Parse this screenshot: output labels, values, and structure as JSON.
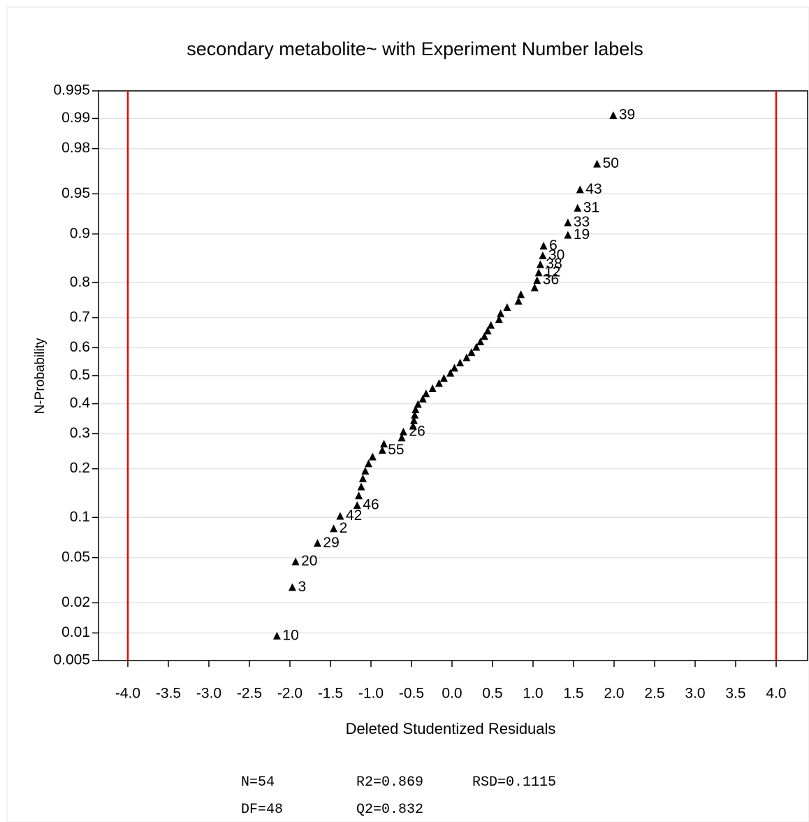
{
  "chart_data": {
    "type": "scatter",
    "title": "secondary metabolite~ with Experiment Number labels",
    "x_label": "Deleted Studentized Residuals",
    "y_label": "N-Probability",
    "y_scale": "probability",
    "marker_color": "#000000",
    "grid": true,
    "xlim": [
      -4.362,
      4.388
    ],
    "ylim": [
      0.005,
      0.995
    ],
    "xticks": [
      {
        "value": -4,
        "label": "-4.0"
      },
      {
        "value": -3.5,
        "label": "-3.5"
      },
      {
        "value": -3,
        "label": "-3.0"
      },
      {
        "value": -2.5,
        "label": "-2.5"
      },
      {
        "value": -2,
        "label": "-2.0"
      },
      {
        "value": -1.5,
        "label": "-1.5"
      },
      {
        "value": -1,
        "label": "-1.0"
      },
      {
        "value": -0.5,
        "label": "-0.5"
      },
      {
        "value": 0,
        "label": "0.0"
      },
      {
        "value": 0.5,
        "label": "0.5"
      },
      {
        "value": 1,
        "label": "1.0"
      },
      {
        "value": 1.5,
        "label": "1.5"
      },
      {
        "value": 2,
        "label": "2.0"
      },
      {
        "value": 2.5,
        "label": "2.5"
      },
      {
        "value": 3,
        "label": "3.0"
      },
      {
        "value": 3.5,
        "label": "3.5"
      },
      {
        "value": 4,
        "label": "4.0"
      }
    ],
    "yticks": [
      0.005,
      0.01,
      0.02,
      0.05,
      0.1,
      0.2,
      0.3,
      0.4,
      0.5,
      0.6,
      0.7,
      0.8,
      0.9,
      0.95,
      0.98,
      0.99,
      0.995
    ],
    "reference_lines": {
      "values": [
        -4,
        4
      ],
      "color": "#ff0000"
    },
    "x": [
      -2.16,
      -1.97,
      -1.93,
      -1.66,
      -1.46,
      -1.38,
      -1.17,
      -1.15,
      -1.12,
      -1.1,
      -1.07,
      -1.03,
      -0.98,
      -0.86,
      -0.84,
      -0.62,
      -0.6,
      -0.48,
      -0.47,
      -0.46,
      -0.45,
      -0.42,
      -0.36,
      -0.32,
      -0.24,
      -0.16,
      -0.1,
      -0.02,
      0.03,
      0.1,
      0.18,
      0.24,
      0.3,
      0.35,
      0.4,
      0.44,
      0.48,
      0.58,
      0.6,
      0.68,
      0.82,
      0.85,
      1.02,
      1.05,
      1.07,
      1.09,
      1.12,
      1.13,
      1.43,
      1.43,
      1.55,
      1.58,
      1.79,
      1.99
    ],
    "values": [
      0.0093,
      0.0278,
      0.0463,
      0.0648,
      0.0833,
      0.1019,
      0.1204,
      0.1389,
      0.1574,
      0.1759,
      0.1944,
      0.213,
      0.2315,
      0.25,
      0.2685,
      0.287,
      0.3056,
      0.3241,
      0.3426,
      0.3611,
      0.3796,
      0.3981,
      0.4167,
      0.4352,
      0.4537,
      0.4722,
      0.4907,
      0.5093,
      0.5278,
      0.5463,
      0.5648,
      0.5833,
      0.6019,
      0.6204,
      0.6389,
      0.6574,
      0.6759,
      0.6944,
      0.713,
      0.7315,
      0.75,
      0.7685,
      0.787,
      0.8056,
      0.8241,
      0.8426,
      0.8611,
      0.8796,
      0.8981,
      0.9167,
      0.9352,
      0.9537,
      0.9722,
      0.9907
    ],
    "point_labels": [
      "10",
      "3",
      "20",
      "29",
      "2",
      "42",
      "46",
      null,
      null,
      null,
      null,
      null,
      null,
      "55",
      null,
      null,
      "26",
      null,
      null,
      null,
      null,
      null,
      null,
      null,
      null,
      null,
      null,
      null,
      null,
      null,
      null,
      null,
      null,
      null,
      null,
      null,
      null,
      null,
      null,
      null,
      null,
      null,
      null,
      "36",
      "12",
      "38",
      "30",
      "6",
      "19",
      "33",
      "31",
      "43",
      "50",
      "39"
    ],
    "stats": [
      [
        "N=54",
        "R2=0.869",
        "RSD=0.1115"
      ],
      [
        "DF=48",
        "Q2=0.832"
      ]
    ]
  }
}
